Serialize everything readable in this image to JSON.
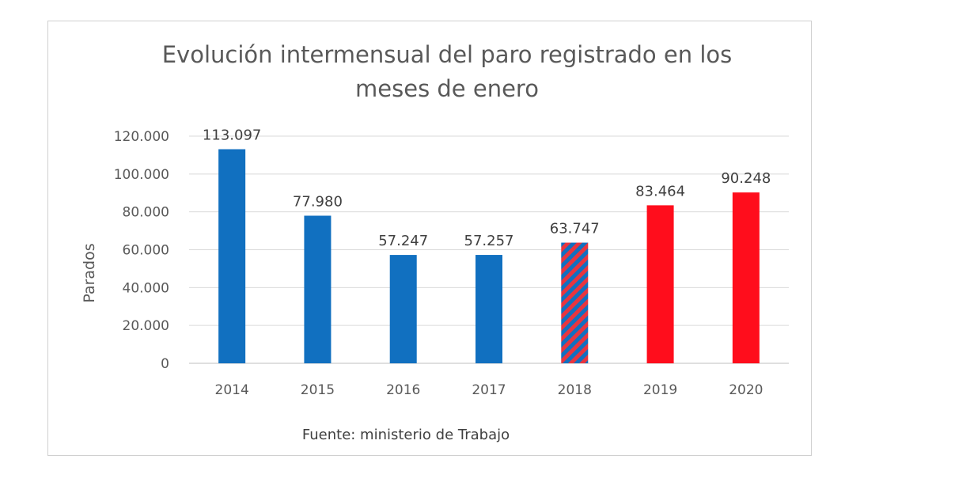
{
  "chart_data": {
    "type": "bar",
    "title_lines": [
      "Evolución intermensual del paro registrado en los",
      "meses de enero"
    ],
    "ylabel": "Parados",
    "xlabel": "",
    "source": "Fuente: ministerio de Trabajo",
    "categories": [
      "2014",
      "2015",
      "2016",
      "2017",
      "2018",
      "2019",
      "2020"
    ],
    "values": [
      113097,
      77980,
      57247,
      57257,
      63747,
      83464,
      90248
    ],
    "value_labels": [
      "113.097",
      "77.980",
      "57.247",
      "57.257",
      "63.747",
      "83.464",
      "90.248"
    ],
    "bar_styles": [
      "blue",
      "blue",
      "blue",
      "blue",
      "striped",
      "red",
      "red"
    ],
    "ylim": [
      0,
      120000
    ],
    "yticks": [
      0,
      20000,
      40000,
      60000,
      80000,
      100000,
      120000
    ],
    "ytick_labels": [
      "0",
      "20.000",
      "40.000",
      "60.000",
      "80.000",
      "100.000",
      "120.000"
    ],
    "grid": true,
    "legend": "none",
    "colors": {
      "blue": "#1170C0",
      "red": "#FF0D1C",
      "stripe_red": "#E8353F",
      "grid": "#d9d9d9",
      "axis": "#bfbfbf"
    }
  }
}
